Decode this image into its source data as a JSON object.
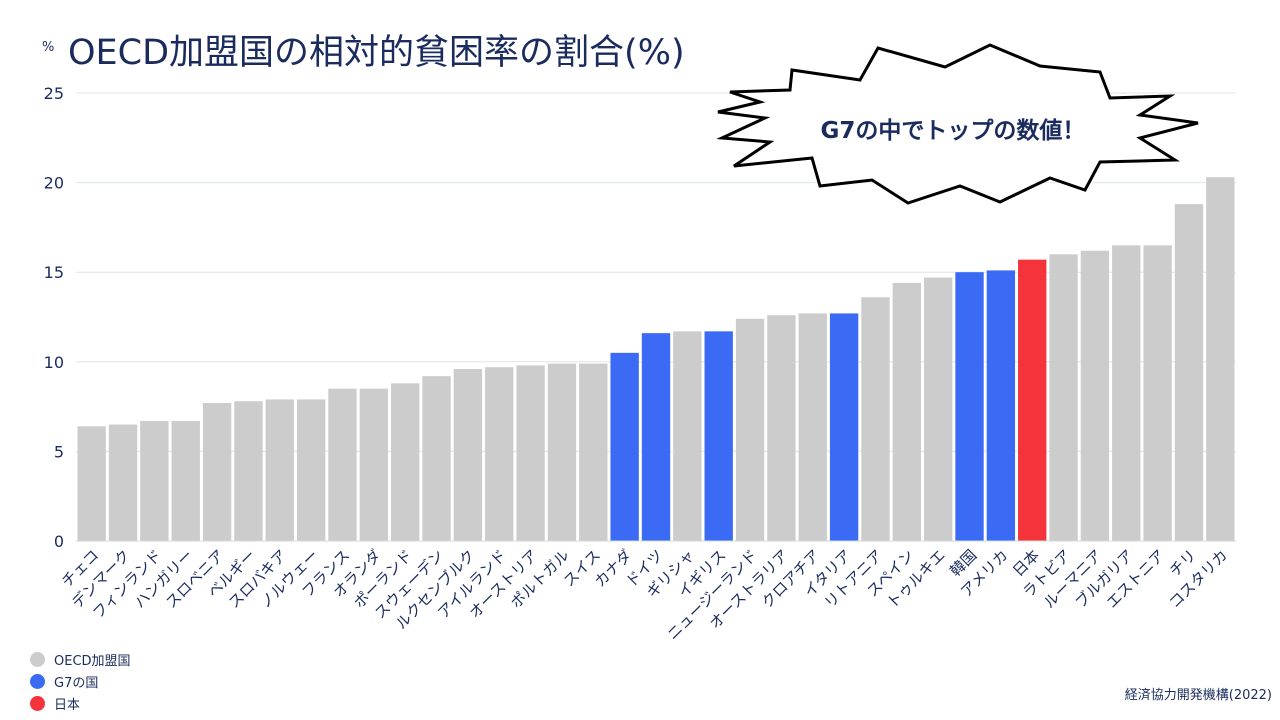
{
  "title": "OECD加盟国の相対的貧困率の割合(%)",
  "colors": {
    "oecd": "#cccccc",
    "g7": "#3b6af5",
    "japan": "#f5333a",
    "text": "#1a2b5e",
    "grid": "#dce6ea"
  },
  "legend": [
    {
      "label": "OECD加盟国",
      "color": "#cccccc"
    },
    {
      "label": "G7の国",
      "color": "#3b6af5"
    },
    {
      "label": "日本",
      "color": "#f5333a"
    }
  ],
  "callout": "G7の中でトップの数値！",
  "source": "経済協力開発機構(2022)",
  "chart_data": {
    "type": "bar",
    "title": "OECD加盟国の相対的貧困率の割合(%)",
    "ylabel": "%",
    "ylim": [
      0,
      25
    ],
    "yticks": [
      0,
      5,
      10,
      15,
      20,
      25
    ],
    "grid": true,
    "legend_position": "bottom-left",
    "categories": [
      "チェコ",
      "デンマーク",
      "フィンランド",
      "ハンガリー",
      "スロベニア",
      "ベルギー",
      "スロバキア",
      "ノルウェー",
      "フランス",
      "オランダ",
      "ポーランド",
      "スウェーデン",
      "ルクセンブルク",
      "アイルランド",
      "オーストリア",
      "ポルトガル",
      "スイス",
      "カナダ",
      "ドイツ",
      "ギリシャ",
      "イギリス",
      "ニュージーランド",
      "オーストラリア",
      "クロアチア",
      "イタリア",
      "リトアニア",
      "スペイン",
      "トゥルキエ",
      "韓国",
      "アメリカ",
      "日本",
      "ラトビア",
      "ルーマニア",
      "ブルガリア",
      "エストニア",
      "チリ",
      "コスタリカ"
    ],
    "values": [
      6.4,
      6.5,
      6.7,
      6.7,
      7.7,
      7.8,
      7.9,
      7.9,
      8.5,
      8.5,
      8.8,
      9.2,
      9.6,
      9.7,
      9.8,
      9.9,
      9.9,
      10.5,
      11.6,
      11.7,
      11.7,
      12.4,
      12.6,
      12.7,
      12.7,
      13.6,
      14.4,
      14.7,
      15.0,
      15.1,
      15.7,
      16.0,
      16.2,
      16.5,
      16.5,
      18.8,
      20.3
    ],
    "groups": [
      "OECD加盟国",
      "OECD加盟国",
      "OECD加盟国",
      "OECD加盟国",
      "OECD加盟国",
      "OECD加盟国",
      "OECD加盟国",
      "OECD加盟国",
      "OECD加盟国",
      "OECD加盟国",
      "OECD加盟国",
      "OECD加盟国",
      "OECD加盟国",
      "OECD加盟国",
      "OECD加盟国",
      "OECD加盟国",
      "OECD加盟国",
      "G7の国",
      "G7の国",
      "OECD加盟国",
      "G7の国",
      "OECD加盟国",
      "OECD加盟国",
      "OECD加盟国",
      "G7の国",
      "OECD加盟国",
      "OECD加盟国",
      "OECD加盟国",
      "G7の国",
      "G7の国",
      "日本",
      "OECD加盟国",
      "OECD加盟国",
      "OECD加盟国",
      "OECD加盟国",
      "OECD加盟国",
      "OECD加盟国"
    ]
  }
}
